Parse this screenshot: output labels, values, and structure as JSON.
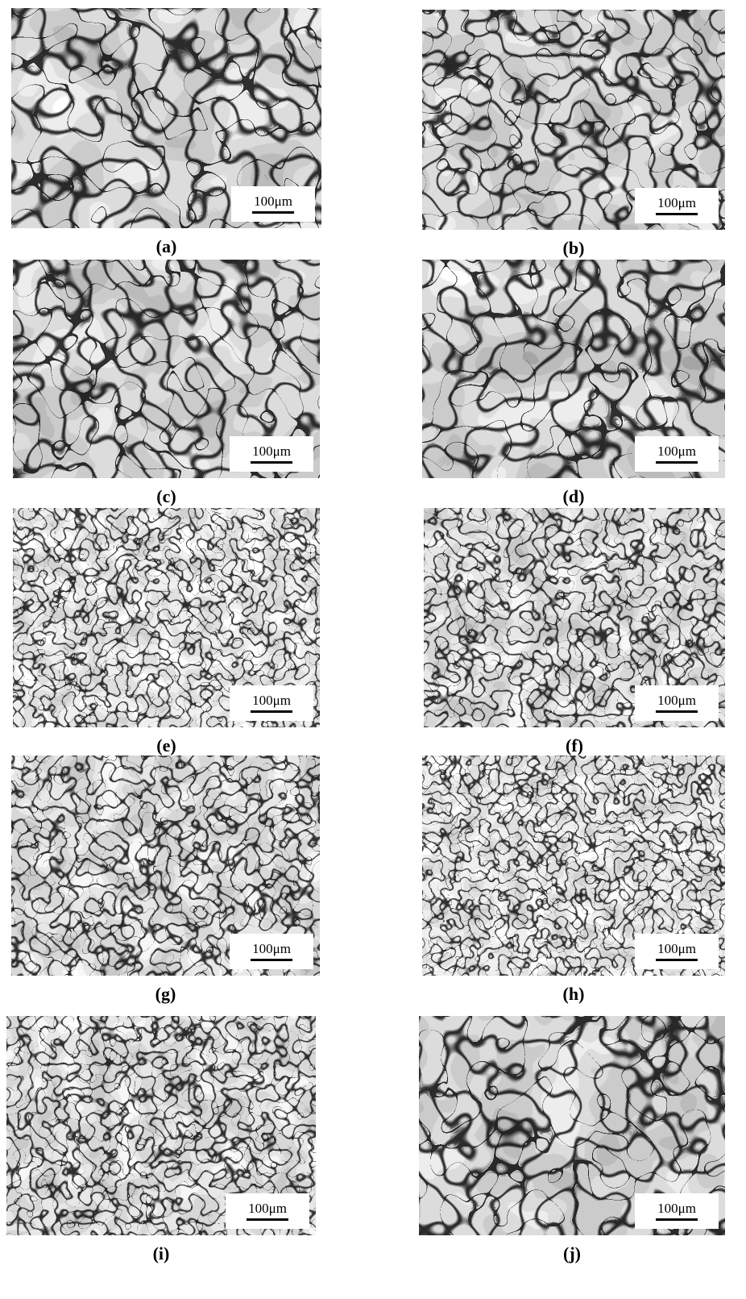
{
  "panels": [
    {
      "caption": "(a)",
      "scale": "100μm"
    },
    {
      "caption": "(b)",
      "scale": "100μm"
    },
    {
      "caption": "(c)",
      "scale": "100μm"
    },
    {
      "caption": "(d)",
      "scale": "100μm"
    },
    {
      "caption": "(e)",
      "scale": "100μm"
    },
    {
      "caption": "(f)",
      "scale": "100μm"
    },
    {
      "caption": "(g)",
      "scale": "100μm"
    },
    {
      "caption": "(h)",
      "scale": "100μm"
    },
    {
      "caption": "(i)",
      "scale": "100μm"
    },
    {
      "caption": "(j)",
      "scale": "100μm"
    }
  ]
}
